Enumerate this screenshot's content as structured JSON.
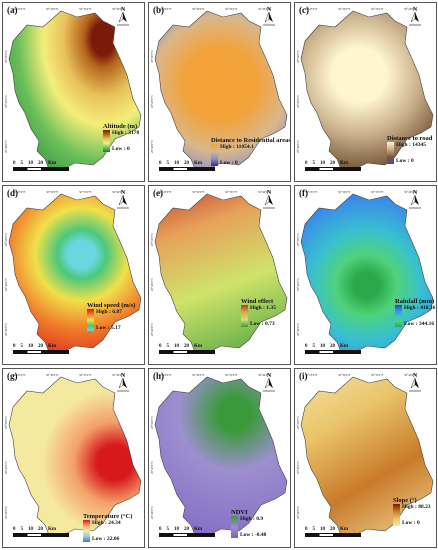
{
  "scale_bar": {
    "labels": [
      "0",
      "5",
      "10",
      "20",
      "Km"
    ]
  },
  "panels": [
    {
      "id": "a",
      "label": "(a)",
      "title": "Altitude (m)",
      "high": "High : 3178",
      "low": "Low : 0",
      "colors": [
        "#7a1b0a",
        "#b5651d",
        "#e8c15a",
        "#f4ee7a",
        "#6bbf59",
        "#1a7f3a"
      ]
    },
    {
      "id": "b",
      "label": "(b)",
      "title": "Distance to Residential areas",
      "high": "High : 11054.1",
      "low": "Low : 0",
      "colors": [
        "#f2a33a",
        "#d9b78a",
        "#8f8fc6",
        "#3c2a8c"
      ]
    },
    {
      "id": "c",
      "label": "(c)",
      "title": "Distance to road",
      "high": "High : 14345",
      "low": "Low : 0",
      "colors": [
        "#fff6d0",
        "#c9b08a",
        "#7a5a3c",
        "#5b3fa0"
      ]
    },
    {
      "id": "d",
      "label": "(d)",
      "title": "Wind speed (m/s)",
      "high": "High : 6.87",
      "low": "Low : 5.17",
      "colors": [
        "#d7191c",
        "#f07c2a",
        "#f0e04a",
        "#4cc87a",
        "#6ad6e0"
      ]
    },
    {
      "id": "e",
      "label": "(e)",
      "title": "Wind effect",
      "high": "High : 1.35",
      "low": "Low : 0.73",
      "colors": [
        "#c0392b",
        "#e6a15a",
        "#cfe36a",
        "#3a9a3a"
      ]
    },
    {
      "id": "f",
      "label": "(f)",
      "title": "Rainfall (mm)",
      "high": "High : 418.36",
      "low": "Low : 344.16",
      "colors": [
        "#2f3bd1",
        "#3a8ee6",
        "#38c0d0",
        "#4fd27a",
        "#2aa84a"
      ]
    },
    {
      "id": "g",
      "label": "(g)",
      "title": "Temperature (°C)",
      "high": "High : 24.34",
      "low": "Low : 22.06",
      "colors": [
        "#d7191c",
        "#f3a06a",
        "#f5e9a0",
        "#9cc9e0",
        "#3a7cc8"
      ]
    },
    {
      "id": "h",
      "label": "(h)",
      "title": "NDVI",
      "high": "High : 0.9",
      "low": "Low : -0.48",
      "colors": [
        "#3a9a3a",
        "#9c8fcf",
        "#7b5fc0"
      ]
    },
    {
      "id": "i",
      "label": "(i)",
      "title": "Slope (°)",
      "high": "High : 88.23",
      "low": "Low : 0",
      "colors": [
        "#7a1b0a",
        "#c97a2a",
        "#e9c46a",
        "#f5e6a8"
      ]
    }
  ],
  "coords": {
    "top": [
      "50°25'0\"E",
      "50°30'0\"E",
      "50°35'0\"E",
      "50°40'0\"E"
    ],
    "left": [
      "29°50'0\"N",
      "29°45'0\"N",
      "29°40'0\"N"
    ]
  },
  "north_label": "N"
}
